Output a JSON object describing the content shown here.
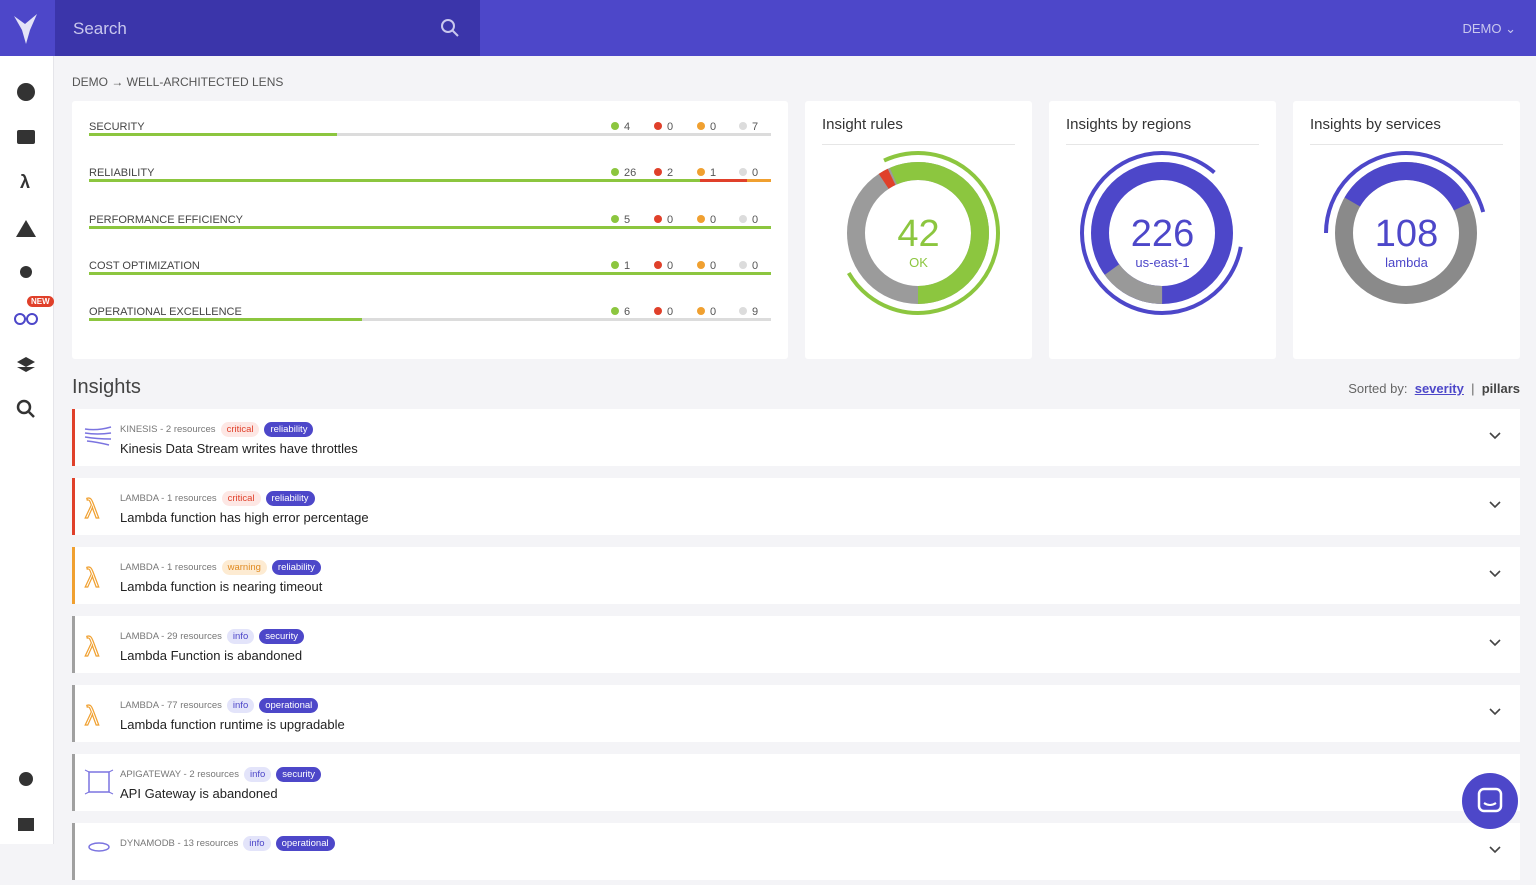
{
  "header": {
    "search_placeholder": "Search",
    "account": "DEMO"
  },
  "sidebar": {
    "badge": "NEW"
  },
  "breadcrumb": "DEMO → WELL-ARCHITECTED LENS",
  "pillars": [
    {
      "name": "SECURITY",
      "ok": 4,
      "critical": 0,
      "warning": 0,
      "info": 7
    },
    {
      "name": "RELIABILITY",
      "ok": 26,
      "critical": 2,
      "warning": 1,
      "info": 0
    },
    {
      "name": "PERFORMANCE EFFICIENCY",
      "ok": 5,
      "critical": 0,
      "warning": 0,
      "info": 0
    },
    {
      "name": "COST OPTIMIZATION",
      "ok": 1,
      "critical": 0,
      "warning": 0,
      "info": 0
    },
    {
      "name": "OPERATIONAL EXCELLENCE",
      "ok": 6,
      "critical": 0,
      "warning": 0,
      "info": 9
    }
  ],
  "widgets": [
    {
      "title": "Insight rules",
      "value": 42,
      "label": "OK"
    },
    {
      "title": "Insights by regions",
      "value": 226,
      "label": "us-east-1"
    },
    {
      "title": "Insights by services",
      "value": 108,
      "label": "lambda"
    }
  ],
  "insights_title": "Insights",
  "sort": {
    "label": "Sorted by:",
    "options": [
      "severity",
      "pillars"
    ]
  },
  "insights": [
    {
      "icon": "kinesis",
      "meta": "KINESIS - 2 resources",
      "severity": "critical",
      "pillar": "reliability",
      "title": "Kinesis Data Stream writes have throttles"
    },
    {
      "icon": "lambda",
      "meta": "LAMBDA - 1 resources",
      "severity": "critical",
      "pillar": "reliability",
      "title": "Lambda function has high error percentage"
    },
    {
      "icon": "lambda",
      "meta": "LAMBDA - 1 resources",
      "severity": "warning",
      "pillar": "reliability",
      "title": "Lambda function is nearing timeout"
    },
    {
      "icon": "lambda",
      "meta": "LAMBDA - 29 resources",
      "severity": "info",
      "pillar": "security",
      "title": "Lambda Function is abandoned"
    },
    {
      "icon": "lambda",
      "meta": "LAMBDA - 77 resources",
      "severity": "info",
      "pillar": "operational",
      "title": "Lambda function runtime is upgradable"
    },
    {
      "icon": "api",
      "meta": "APIGATEWAY - 2 resources",
      "severity": "info",
      "pillar": "security",
      "title": "API Gateway is abandoned"
    },
    {
      "icon": "dynamo",
      "meta": "DYNAMODB - 13 resources",
      "severity": "info",
      "pillar": "operational"
    }
  ]
}
